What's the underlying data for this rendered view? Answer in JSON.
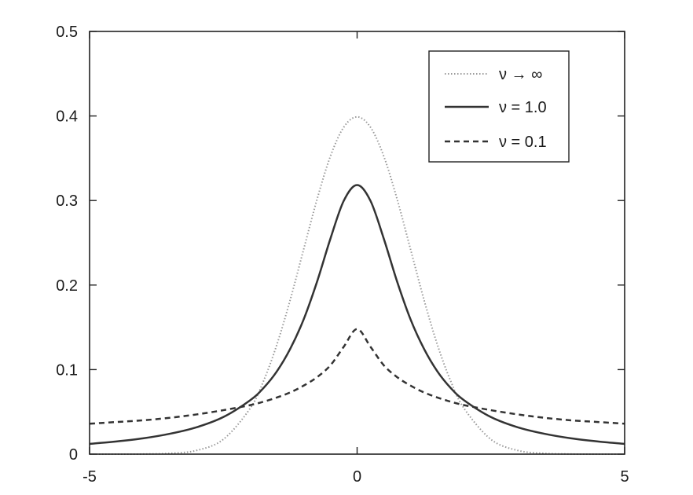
{
  "chart_data": {
    "type": "line",
    "x_range": [
      -5,
      5
    ],
    "ylim": [
      0,
      0.5
    ],
    "x_ticks": [
      -5,
      0,
      5
    ],
    "y_ticks": [
      0,
      0.1,
      0.2,
      0.3,
      0.4,
      0.5
    ],
    "x_tick_labels": [
      "-5",
      "0",
      "5"
    ],
    "y_tick_labels": [
      "0",
      "0.1",
      "0.2",
      "0.3",
      "0.4",
      "0.5"
    ],
    "grid": false,
    "legend_position": "top-right",
    "x": [
      -5,
      -4.5,
      -4,
      -3.5,
      -3,
      -2.5,
      -2,
      -1.75,
      -1.5,
      -1.25,
      -1,
      -0.75,
      -0.5,
      -0.25,
      0,
      0.25,
      0.5,
      0.75,
      1,
      1.25,
      1.5,
      1.75,
      2,
      2.5,
      3,
      3.5,
      4,
      4.5,
      5
    ],
    "series": [
      {
        "name": "ν → ∞",
        "style": "dotted",
        "color": "#999999",
        "values": [
          0.0,
          0.0,
          0.0001,
          0.0009,
          0.0044,
          0.0175,
          0.054,
          0.0863,
          0.1295,
          0.1826,
          0.242,
          0.3011,
          0.3521,
          0.3867,
          0.3989,
          0.3867,
          0.3521,
          0.3011,
          0.242,
          0.1826,
          0.1295,
          0.0863,
          0.054,
          0.0175,
          0.0044,
          0.0009,
          0.0001,
          0.0,
          0.0
        ]
      },
      {
        "name": "ν = 1.0",
        "style": "solid",
        "color": "#333333",
        "values": [
          0.0122,
          0.015,
          0.0187,
          0.0241,
          0.0318,
          0.0439,
          0.0637,
          0.0782,
          0.0979,
          0.1246,
          0.1592,
          0.2037,
          0.2546,
          0.2996,
          0.3183,
          0.2996,
          0.2546,
          0.2037,
          0.1592,
          0.1246,
          0.0979,
          0.0782,
          0.0637,
          0.0439,
          0.0318,
          0.0241,
          0.0187,
          0.015,
          0.0122
        ]
      },
      {
        "name": "ν = 0.1",
        "style": "dashed",
        "color": "#333333",
        "values": [
          0.036,
          0.038,
          0.04,
          0.043,
          0.047,
          0.052,
          0.058,
          0.062,
          0.067,
          0.073,
          0.081,
          0.091,
          0.105,
          0.127,
          0.148,
          0.127,
          0.105,
          0.091,
          0.081,
          0.073,
          0.067,
          0.062,
          0.058,
          0.052,
          0.047,
          0.043,
          0.04,
          0.038,
          0.036
        ]
      }
    ]
  }
}
